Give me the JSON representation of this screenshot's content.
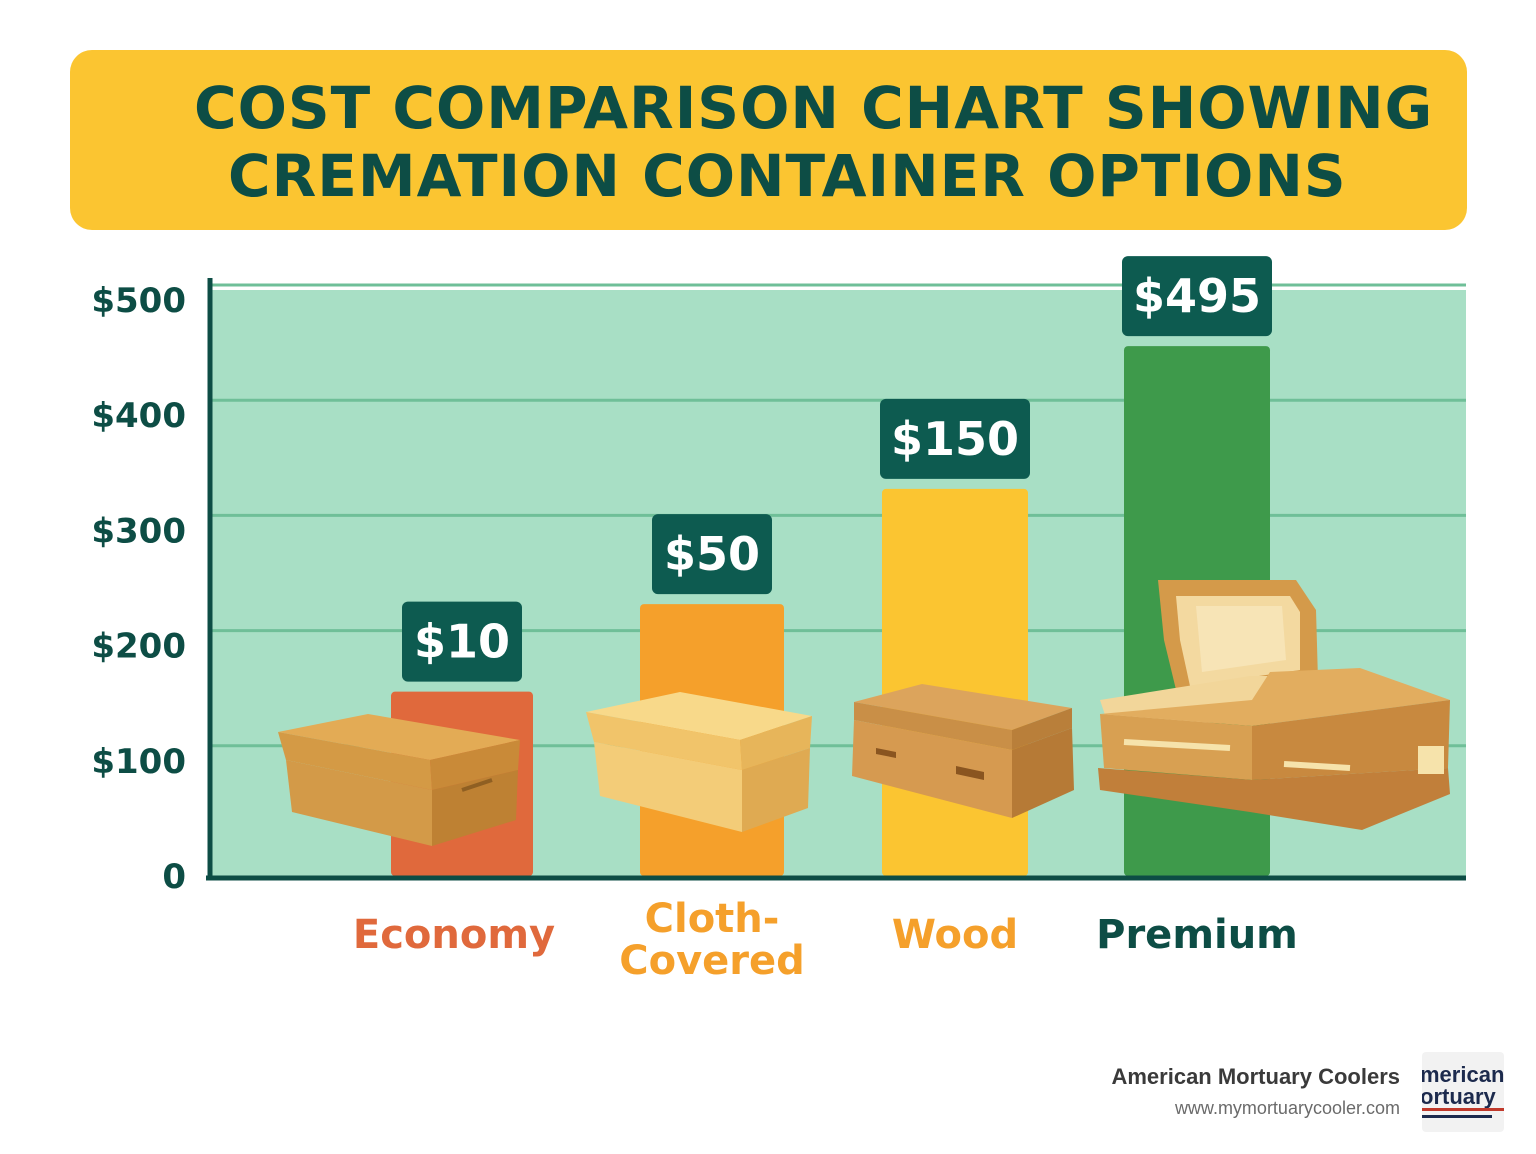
{
  "title": {
    "line1": "COST COMPARISON CHART SHOWING",
    "line2": "CREMATION CONTAINER OPTIONS"
  },
  "chart_data": {
    "type": "bar",
    "categories": [
      "Economy",
      "Cloth-Covered",
      "Wood",
      "Premium"
    ],
    "category_lines": [
      [
        "Economy"
      ],
      [
        "Cloth-",
        "Covered"
      ],
      [
        "Wood"
      ],
      [
        "Premium"
      ]
    ],
    "values": [
      10,
      50,
      150,
      495
    ],
    "value_labels": [
      "$10",
      "$50",
      "$150",
      "$495"
    ],
    "y_ticks": [
      0,
      100,
      200,
      300,
      400,
      500
    ],
    "y_tick_labels": [
      "0",
      "$100",
      "$200",
      "$300",
      "$400",
      "$500"
    ],
    "ylim": [
      0,
      500
    ],
    "grid": true,
    "bar_colors": [
      "#e0693c",
      "#f5a02b",
      "#fbc531",
      "#3e9a4b"
    ],
    "label_colors": [
      "#e0693c",
      "#f5a02b",
      "#f5a02b",
      "#0d4d45"
    ],
    "plot_background": "#a8dfc5",
    "axis_color": "#0d4d45",
    "value_box_color": "#0d5b50",
    "icons": [
      "cardboard-box-icon",
      "cloth-covered-box-icon",
      "wood-casket-icon",
      "open-casket-icon"
    ]
  },
  "brand": {
    "name": "American Mortuary Coolers",
    "url": "www.mymortuarycooler.com",
    "logo_line1": "merican",
    "logo_line2": "ortuary"
  }
}
